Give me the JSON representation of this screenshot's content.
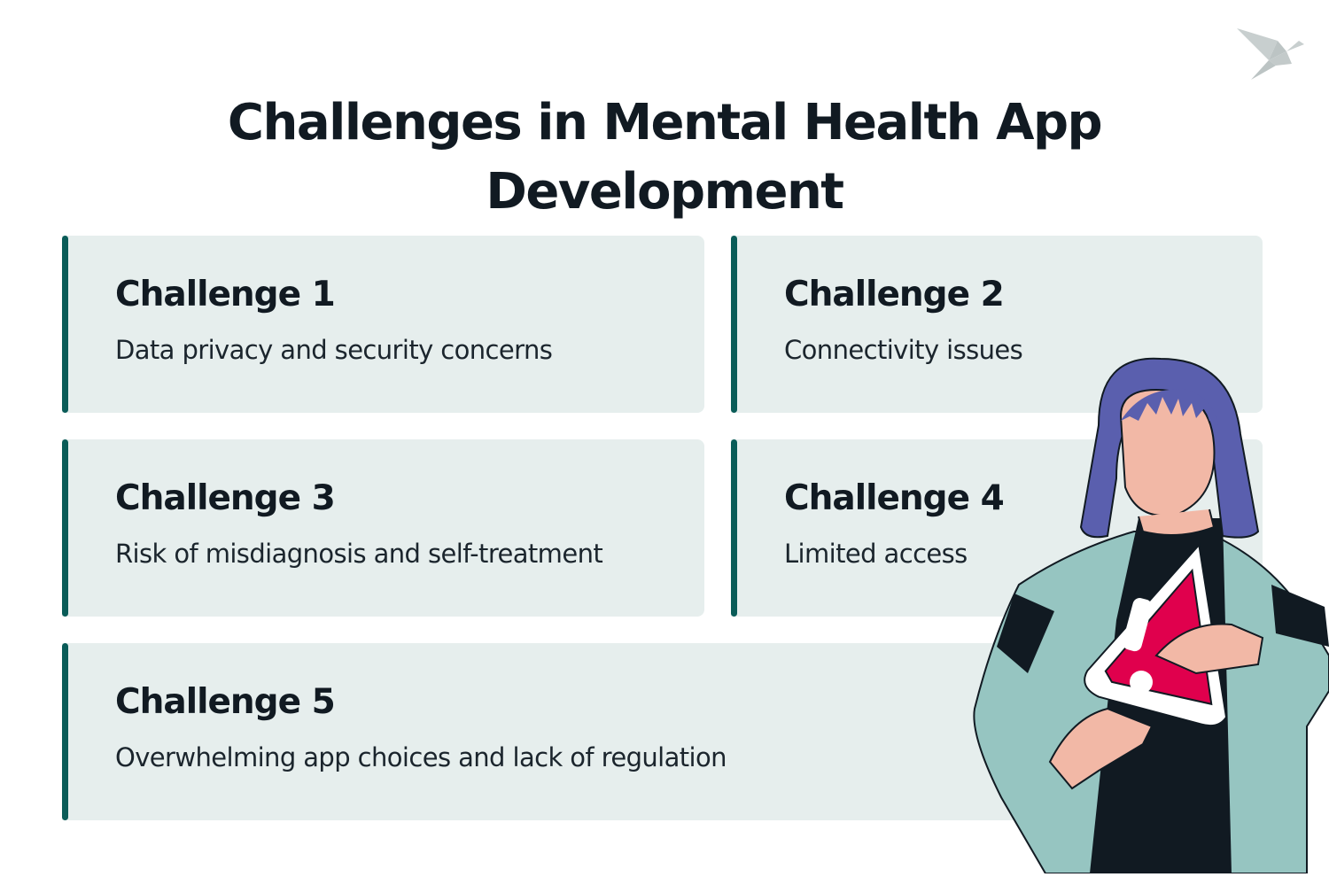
{
  "title": {
    "line1": "Challenges in Mental Health App",
    "line2": "Development"
  },
  "cards": [
    {
      "heading": "Challenge 1",
      "text": "Data privacy and security concerns"
    },
    {
      "heading": "Challenge 2",
      "text": "Connectivity issues"
    },
    {
      "heading": "Challenge 3",
      "text": "Risk of misdiagnosis and self-treatment"
    },
    {
      "heading": "Challenge 4",
      "text": "Limited access"
    },
    {
      "heading": "Challenge 5",
      "text": "Overwhelming app choices and lack of regulation"
    }
  ],
  "colors": {
    "accent": "#0a5c58",
    "card_bg": "#e6eeed",
    "text": "#111a22",
    "warning": "#e0004d"
  },
  "icons": {
    "logo": "origami-bird-icon",
    "illustration": "woman-holding-warning-sign"
  }
}
